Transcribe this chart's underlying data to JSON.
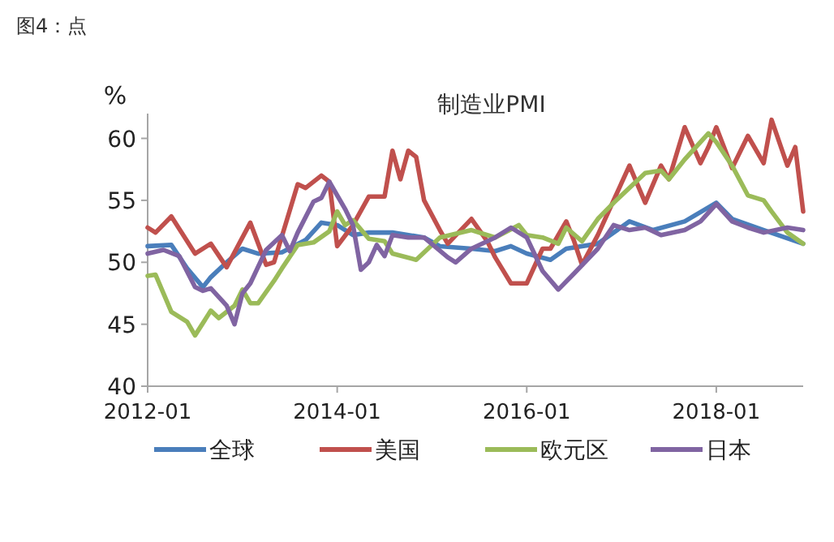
{
  "chart_data": {
    "type": "line",
    "title": "制造业PMI",
    "ylabel": "%",
    "annotations": [
      "图4：点"
    ],
    "xlim": [
      "2012-01",
      "2018-12"
    ],
    "xticks": [
      "2012-01",
      "2014-01",
      "2016-01",
      "2018-01"
    ],
    "ylim": [
      40,
      62
    ],
    "yticks": [
      40,
      45,
      50,
      55,
      60
    ],
    "grid": false,
    "legend": "bottom",
    "marker": "none",
    "line_style": "solid",
    "series": [
      {
        "name": "全球",
        "color": "#4a7ebb",
        "x": [
          "2012-01",
          "2012-04",
          "2012-06",
          "2012-08",
          "2012-09",
          "2012-11",
          "2013-01",
          "2013-03",
          "2013-06",
          "2013-09",
          "2013-11",
          "2014-01",
          "2014-03",
          "2014-05",
          "2014-08",
          "2014-12",
          "2015-02",
          "2015-06",
          "2015-09",
          "2015-11",
          "2016-01",
          "2016-04",
          "2016-06",
          "2016-10",
          "2017-02",
          "2017-05",
          "2017-09",
          "2018-01",
          "2018-03",
          "2018-07",
          "2018-12"
        ],
        "values": [
          51.3,
          51.4,
          49.5,
          48,
          48.8,
          50,
          51.1,
          50.7,
          50.8,
          51.8,
          53.2,
          53,
          52.2,
          52.4,
          52.4,
          52,
          51.3,
          51.1,
          50.9,
          51.3,
          50.7,
          50.2,
          51.1,
          51.5,
          53.3,
          52.6,
          53.3,
          54.8,
          53.5,
          52.6,
          51.5
        ]
      },
      {
        "name": "美国",
        "color": "#c0504d",
        "x": [
          "2012-01",
          "2012-02",
          "2012-04",
          "2012-07",
          "2012-09",
          "2012-11",
          "2013-02",
          "2013-04",
          "2013-05",
          "2013-08",
          "2013-09",
          "2013-11",
          "2013-12",
          "2014-01",
          "2014-03",
          "2014-05",
          "2014-07",
          "2014-08",
          "2014-09",
          "2014-10",
          "2014-11",
          "2014-12",
          "2015-02",
          "2015-03",
          "2015-06",
          "2015-08",
          "2015-09",
          "2015-11",
          "2016-01",
          "2016-03",
          "2016-04",
          "2016-06",
          "2016-07",
          "2016-08",
          "2016-10",
          "2016-12",
          "2017-02",
          "2017-04",
          "2017-06",
          "2017-07",
          "2017-09",
          "2017-11",
          "2017-12",
          "2018-01",
          "2018-03",
          "2018-05",
          "2018-07",
          "2018-08",
          "2018-10",
          "2018-11",
          "2018-12"
        ],
        "values": [
          52.8,
          52.4,
          53.7,
          50.7,
          51.5,
          49.6,
          53.2,
          49.8,
          50,
          56.3,
          56,
          57,
          56.5,
          51.3,
          53,
          55.3,
          55.3,
          59,
          56.7,
          59,
          58.5,
          55,
          52.6,
          51.5,
          53.5,
          51.7,
          50.4,
          48.3,
          48.3,
          51.1,
          51.1,
          53.3,
          51.7,
          49.8,
          52.2,
          55,
          57.8,
          54.8,
          57.8,
          56.7,
          60.9,
          58,
          59.3,
          60.9,
          57.6,
          60.2,
          58,
          61.5,
          57.8,
          59.3,
          54.1
        ]
      },
      {
        "name": "欧元区",
        "color": "#9bbb59",
        "x": [
          "2012-01",
          "2012-02",
          "2012-04",
          "2012-06",
          "2012-07",
          "2012-09",
          "2012-10",
          "2012-12",
          "2013-01",
          "2013-02",
          "2013-03",
          "2013-05",
          "2013-06",
          "2013-08",
          "2013-10",
          "2013-12",
          "2014-01",
          "2014-02",
          "2014-03",
          "2014-05",
          "2014-07",
          "2014-08",
          "2014-11",
          "2015-02",
          "2015-06",
          "2015-09",
          "2015-12",
          "2016-01",
          "2016-03",
          "2016-05",
          "2016-06",
          "2016-08",
          "2016-10",
          "2016-12",
          "2017-04",
          "2017-06",
          "2017-07",
          "2017-09",
          "2017-12",
          "2018-01",
          "2018-03",
          "2018-05",
          "2018-07",
          "2018-08",
          "2018-10",
          "2018-12"
        ],
        "values": [
          48.9,
          49,
          46,
          45.2,
          44.1,
          46.1,
          45.5,
          46.5,
          47.8,
          46.7,
          46.7,
          48.5,
          49.5,
          51.4,
          51.6,
          52.5,
          54.1,
          53,
          53.4,
          51.9,
          51.7,
          50.7,
          50.2,
          52,
          52.6,
          52,
          53,
          52.2,
          52,
          51.5,
          52.8,
          51.7,
          53.5,
          54.8,
          57.2,
          57.4,
          56.7,
          58.3,
          60.4,
          59.7,
          57.8,
          55.4,
          55,
          54.1,
          52.4,
          51.5
        ]
      },
      {
        "name": "日本",
        "color": "#8064a2",
        "x": [
          "2012-01",
          "2012-03",
          "2012-05",
          "2012-07",
          "2012-08",
          "2012-09",
          "2012-11",
          "2012-12",
          "2013-01",
          "2013-02",
          "2013-04",
          "2013-06",
          "2013-07",
          "2013-08",
          "2013-10",
          "2013-11",
          "2013-12",
          "2014-02",
          "2014-03",
          "2014-04",
          "2014-05",
          "2014-06",
          "2014-07",
          "2014-08",
          "2014-10",
          "2014-12",
          "2015-03",
          "2015-04",
          "2015-06",
          "2015-09",
          "2015-11",
          "2016-01",
          "2016-03",
          "2016-05",
          "2016-07",
          "2016-10",
          "2016-12",
          "2017-02",
          "2017-04",
          "2017-06",
          "2017-09",
          "2017-11",
          "2018-01",
          "2018-03",
          "2018-05",
          "2018-07",
          "2018-10",
          "2018-12"
        ],
        "values": [
          50.7,
          51,
          50.5,
          48,
          47.7,
          47.9,
          46.5,
          45,
          47.5,
          48.3,
          51,
          52.2,
          50.9,
          52.4,
          54.9,
          55.2,
          56.5,
          54.3,
          53,
          49.4,
          50,
          51.4,
          50.5,
          52.2,
          52,
          52,
          50.4,
          50,
          51.1,
          52,
          52.8,
          52,
          49.3,
          47.8,
          49.1,
          51.1,
          53,
          52.6,
          52.8,
          52.2,
          52.6,
          53.3,
          54.7,
          53.3,
          52.8,
          52.4,
          52.8,
          52.6
        ]
      }
    ]
  }
}
